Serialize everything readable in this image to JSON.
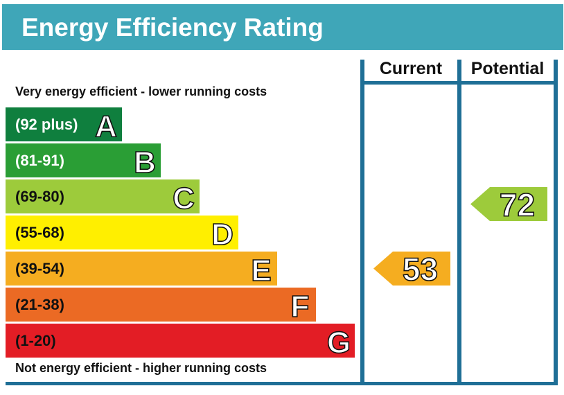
{
  "title": "Energy Efficiency Rating",
  "captions": {
    "top": "Very energy efficient - lower running costs",
    "bottom": "Not energy efficient - higher running costs"
  },
  "columns": {
    "current": "Current",
    "potential": "Potential"
  },
  "chart_data": {
    "type": "bar",
    "bands": [
      {
        "letter": "A",
        "range": "(92 plus)",
        "min": 92,
        "max": 100,
        "color": "#0f7f3e",
        "text_color": "#ffffff"
      },
      {
        "letter": "B",
        "range": "(81-91)",
        "min": 81,
        "max": 91,
        "color": "#2a9e35",
        "text_color": "#ffffff"
      },
      {
        "letter": "C",
        "range": "(69-80)",
        "min": 69,
        "max": 80,
        "color": "#9dcb3b",
        "text_color": "#111111"
      },
      {
        "letter": "D",
        "range": "(55-68)",
        "min": 55,
        "max": 68,
        "color": "#ffef00",
        "text_color": "#111111"
      },
      {
        "letter": "E",
        "range": "(39-54)",
        "min": 39,
        "max": 54,
        "color": "#f5ad20",
        "text_color": "#111111"
      },
      {
        "letter": "F",
        "range": "(21-38)",
        "min": 21,
        "max": 38,
        "color": "#eb6a24",
        "text_color": "#111111"
      },
      {
        "letter": "G",
        "range": "(1-20)",
        "min": 1,
        "max": 20,
        "color": "#e31d25",
        "text_color": "#111111"
      }
    ],
    "current": {
      "value": 53,
      "label": "53",
      "band": "E",
      "color": "#f5ad20"
    },
    "potential": {
      "value": 72,
      "label": "72",
      "band": "C",
      "color": "#9dcb3b"
    }
  },
  "colors": {
    "title_bar": "#3fa6b8",
    "frame": "#1f6f96"
  }
}
